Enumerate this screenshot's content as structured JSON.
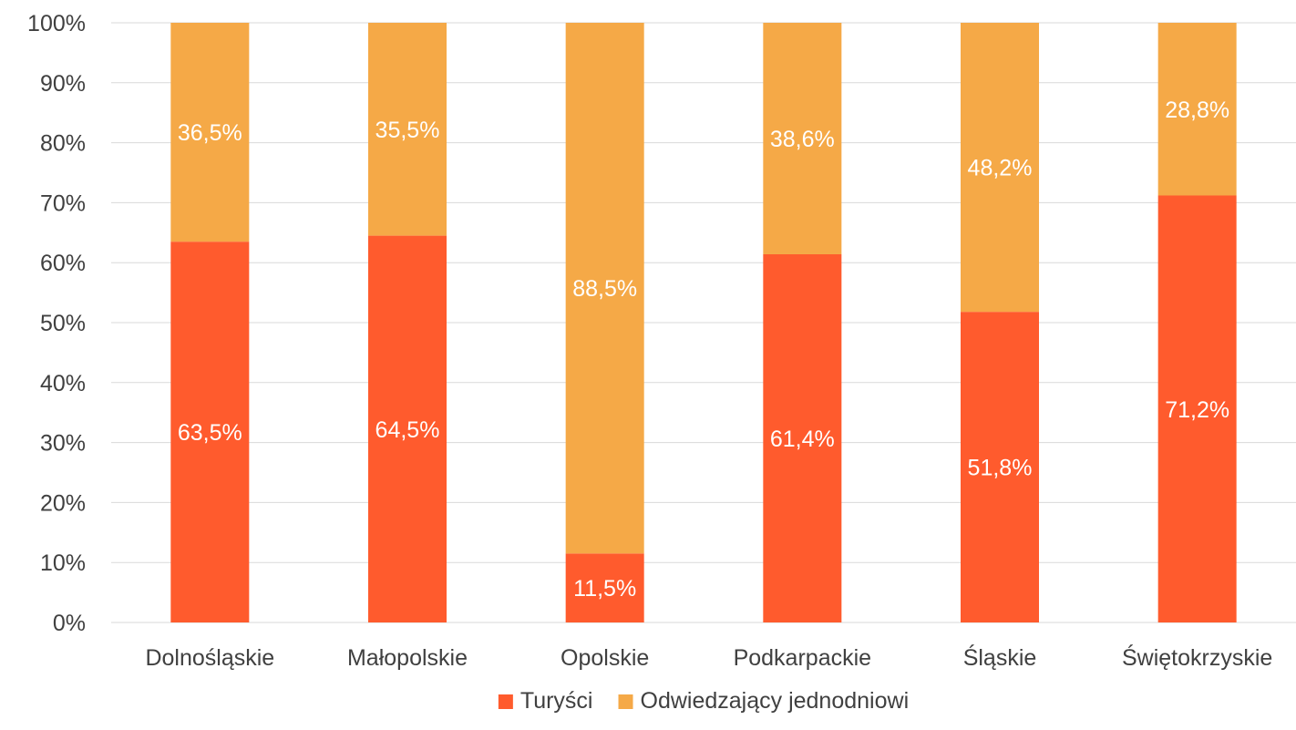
{
  "chart_data": {
    "type": "bar",
    "stacked": true,
    "categories": [
      "Dolnośląskie",
      "Małopolskie",
      "Opolskie",
      "Podkarpackie",
      "Śląskie",
      "Świętokrzyskie"
    ],
    "series": [
      {
        "name": "Turyści",
        "color": "#ff5b2d",
        "values": [
          63.5,
          64.5,
          11.5,
          61.4,
          51.8,
          71.2
        ],
        "labels": [
          "63,5%",
          "64,5%",
          "11,5%",
          "61,4%",
          "51,8%",
          "71,2%"
        ]
      },
      {
        "name": "Odwiedzający jednodniowi",
        "color": "#f5a947",
        "values": [
          36.5,
          35.5,
          88.5,
          38.6,
          48.2,
          28.8
        ],
        "labels": [
          "36,5%",
          "35,5%",
          "88,5%",
          "38,6%",
          "48,2%",
          "28,8%"
        ]
      }
    ],
    "y_ticks": [
      "0%",
      "10%",
      "20%",
      "30%",
      "40%",
      "50%",
      "60%",
      "70%",
      "80%",
      "90%",
      "100%"
    ],
    "ylim": [
      0,
      100
    ],
    "grid": true,
    "legend": "bottom-center"
  }
}
